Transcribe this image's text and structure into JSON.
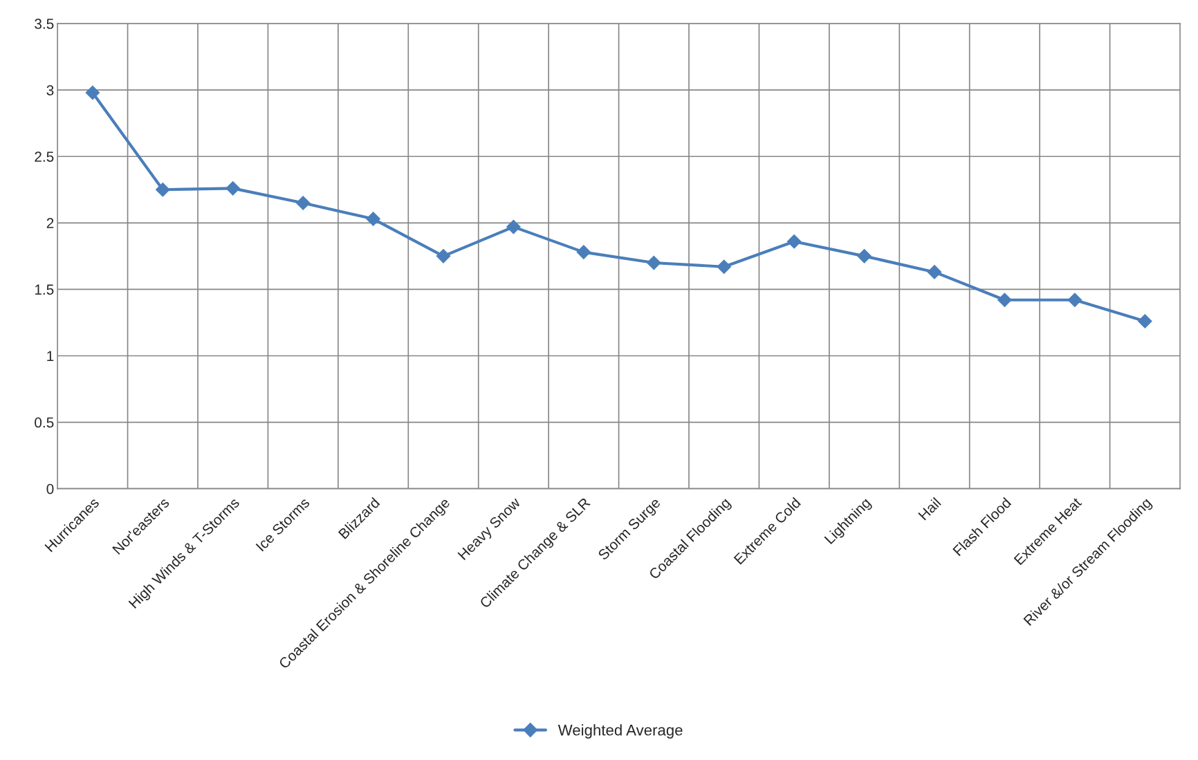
{
  "chart_data": {
    "type": "line",
    "categories": [
      "Hurricanes",
      "Nor'easters",
      "High Winds & T-Storms",
      "Ice Storms",
      "Blizzard",
      "Coastal Erosion & Shoreline Change",
      "Heavy Snow",
      "Climate Change & SLR",
      "Storm Surge",
      "Coastal Flooding",
      "Extreme Cold",
      "Lightning",
      "Hail",
      "Flash Flood",
      "Extreme Heat",
      "River &/or Stream Flooding"
    ],
    "series": [
      {
        "name": "Weighted Average",
        "color": "#4a7ebb",
        "values": [
          2.98,
          2.25,
          2.26,
          2.15,
          2.03,
          1.75,
          1.97,
          1.78,
          1.7,
          1.67,
          1.86,
          1.75,
          1.63,
          1.42,
          1.42,
          1.26
        ]
      }
    ],
    "ylim": [
      0,
      3.5
    ],
    "yticks": [
      0,
      0.5,
      1,
      1.5,
      2,
      2.5,
      3,
      3.5
    ],
    "grid": true,
    "legend": "bottom",
    "marker": "diamond",
    "line_style": "solid"
  }
}
